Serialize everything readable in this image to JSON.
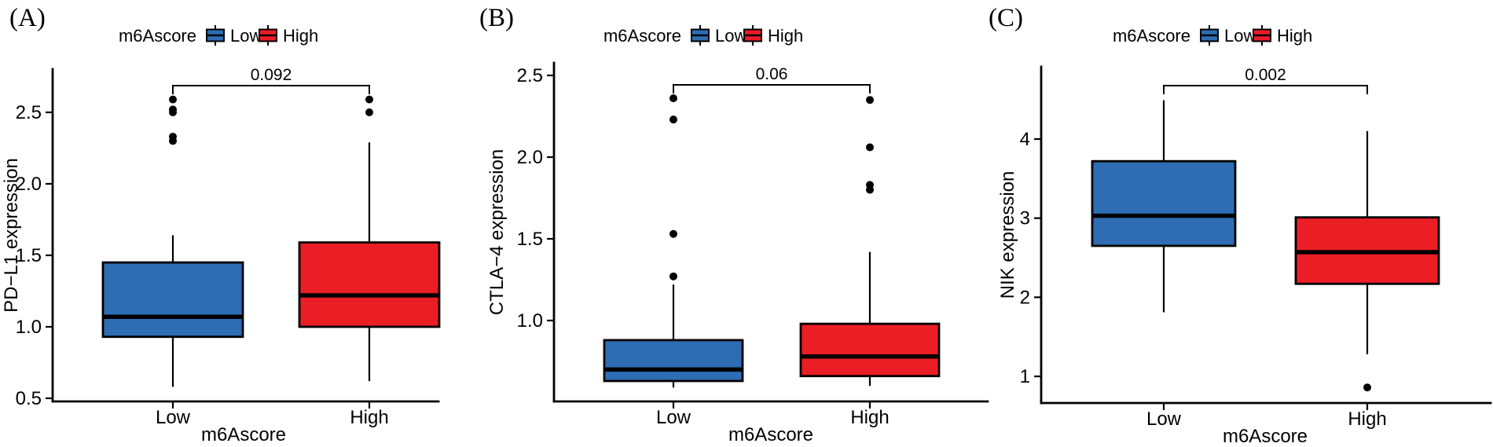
{
  "colors": {
    "low": "#2E6DB4",
    "high": "#EB1D25",
    "stroke": "#000000",
    "background": "#FFFFFF"
  },
  "chart_data": [
    {
      "type": "box",
      "panel_label": "(A)",
      "legend": {
        "title": "m6Ascore",
        "items": [
          {
            "label": "Low",
            "color_key": "low"
          },
          {
            "label": "High",
            "color_key": "high"
          }
        ]
      },
      "ylabel": "PD−L1 expression",
      "xlabel": "m6Ascore",
      "categories": [
        "Low",
        "High"
      ],
      "yticks": [
        "0.5",
        "1.0",
        "1.5",
        "2.0",
        "2.5"
      ],
      "ylim": [
        0.48,
        2.8
      ],
      "p_value": "0.092",
      "series": [
        {
          "name": "Low",
          "color_key": "low",
          "whisker_low": 0.58,
          "q1": 0.93,
          "median": 1.07,
          "q3": 1.45,
          "whisker_high": 1.64,
          "outliers": [
            2.3,
            2.33,
            2.5,
            2.52,
            2.59
          ]
        },
        {
          "name": "High",
          "color_key": "high",
          "whisker_low": 0.62,
          "q1": 1.0,
          "median": 1.22,
          "q3": 1.59,
          "whisker_high": 2.29,
          "outliers": [
            2.5,
            2.59
          ]
        }
      ]
    },
    {
      "type": "box",
      "panel_label": "(B)",
      "legend": {
        "title": "m6Ascore",
        "items": [
          {
            "label": "Low",
            "color_key": "low"
          },
          {
            "label": "High",
            "color_key": "high"
          }
        ]
      },
      "ylabel": "CTLA−4 expression",
      "xlabel": "m6Ascore",
      "categories": [
        "Low",
        "High"
      ],
      "yticks": [
        "1.0",
        "1.5",
        "2.0",
        "2.5"
      ],
      "ylim": [
        0.5,
        2.58
      ],
      "p_value": "0.06",
      "series": [
        {
          "name": "Low",
          "color_key": "low",
          "whisker_low": 0.59,
          "q1": 0.63,
          "median": 0.7,
          "q3": 0.88,
          "whisker_high": 1.22,
          "outliers": [
            1.27,
            1.53,
            2.23,
            2.36
          ]
        },
        {
          "name": "High",
          "color_key": "high",
          "whisker_low": 0.6,
          "q1": 0.66,
          "median": 0.78,
          "q3": 0.98,
          "whisker_high": 1.42,
          "outliers": [
            1.8,
            1.83,
            2.06,
            2.35
          ]
        }
      ]
    },
    {
      "type": "box",
      "panel_label": "(C)",
      "legend": {
        "title": "m6Ascore",
        "items": [
          {
            "label": "Low",
            "color_key": "low"
          },
          {
            "label": "High",
            "color_key": "high"
          }
        ]
      },
      "ylabel": "NIK expression",
      "xlabel": "m6Ascore",
      "categories": [
        "Low",
        "High"
      ],
      "yticks": [
        "1",
        "2",
        "3",
        "4"
      ],
      "ylim": [
        0.66,
        4.91
      ],
      "p_value": "0.002",
      "series": [
        {
          "name": "Low",
          "color_key": "low",
          "whisker_low": 1.81,
          "q1": 2.65,
          "median": 3.03,
          "q3": 3.72,
          "whisker_high": 4.49,
          "outliers": []
        },
        {
          "name": "High",
          "color_key": "high",
          "whisker_low": 1.28,
          "q1": 2.17,
          "median": 2.57,
          "q3": 3.01,
          "whisker_high": 4.1,
          "outliers": [
            0.86
          ]
        }
      ]
    }
  ]
}
